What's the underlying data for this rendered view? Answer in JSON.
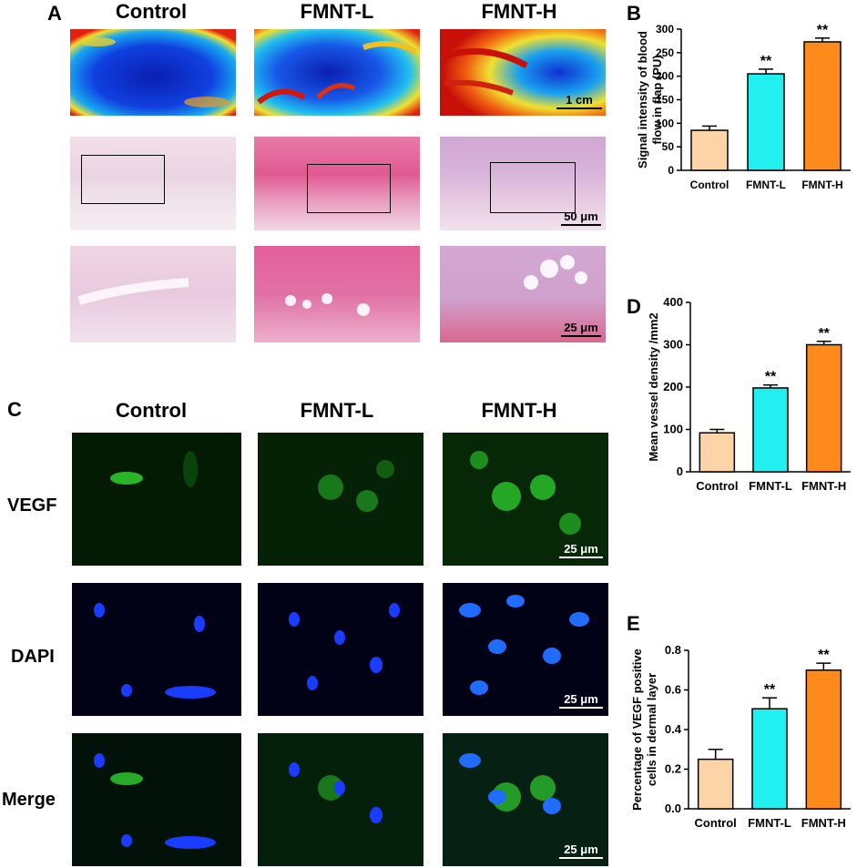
{
  "panels": {
    "a": "A",
    "b": "B",
    "c": "C",
    "d": "D",
    "e": "E"
  },
  "groups": [
    "Control",
    "FMNT-L",
    "FMNT-H"
  ],
  "panel_a": {
    "scale_bars": [
      "1 cm",
      "50 μm",
      "25 μm"
    ]
  },
  "panel_c": {
    "rows": [
      "VEGF",
      "DAPI",
      "Merge"
    ],
    "scale_bar": "25 μm"
  },
  "colors": {
    "control": "#FDD3A8",
    "fmnt_l": "#22F0F0",
    "fmnt_h": "#FF8A1C",
    "vegf_green": "#2fd12f",
    "dapi_blue": "#1a3cff"
  },
  "chart_data": [
    {
      "id": "B",
      "type": "bar",
      "categories": [
        "Control",
        "FMNT-L",
        "FMNT-H"
      ],
      "values": [
        85,
        205,
        273
      ],
      "errors": [
        9,
        10,
        8
      ],
      "annotations": [
        "",
        "**",
        "**"
      ],
      "ylabel": "Signal intensity of blood flow in flap (PU)",
      "ylabel_lines": [
        "Signal intensity of blood",
        "flow in flap (PU)"
      ],
      "ylim": [
        0,
        300
      ],
      "yticks": [
        0,
        50,
        100,
        150,
        200,
        250,
        300
      ]
    },
    {
      "id": "D",
      "type": "bar",
      "categories": [
        "Control",
        "FMNT-L",
        "FMNT-H"
      ],
      "values": [
        92,
        198,
        300
      ],
      "errors": [
        8,
        7,
        8
      ],
      "annotations": [
        "",
        "**",
        "**"
      ],
      "ylabel": "Mean vessel density /mm2",
      "ylabel_lines": [
        "Mean vessel density /mm2"
      ],
      "ylim": [
        0,
        400
      ],
      "yticks": [
        0,
        100,
        200,
        300,
        400
      ]
    },
    {
      "id": "E",
      "type": "bar",
      "categories": [
        "Control",
        "FMNT-L",
        "FMNT-H"
      ],
      "values": [
        0.25,
        0.505,
        0.7
      ],
      "errors": [
        0.05,
        0.055,
        0.035
      ],
      "annotations": [
        "",
        "**",
        "**"
      ],
      "ylabel": "Percentage of VEGF positive cells in dermal layer",
      "ylabel_lines": [
        "Percentage of VEGF positive",
        "cells in dermal layer"
      ],
      "ylim": [
        0,
        0.8
      ],
      "yticks": [
        "0.0",
        "0.2",
        "0.4",
        "0.6",
        "0.8"
      ]
    }
  ]
}
